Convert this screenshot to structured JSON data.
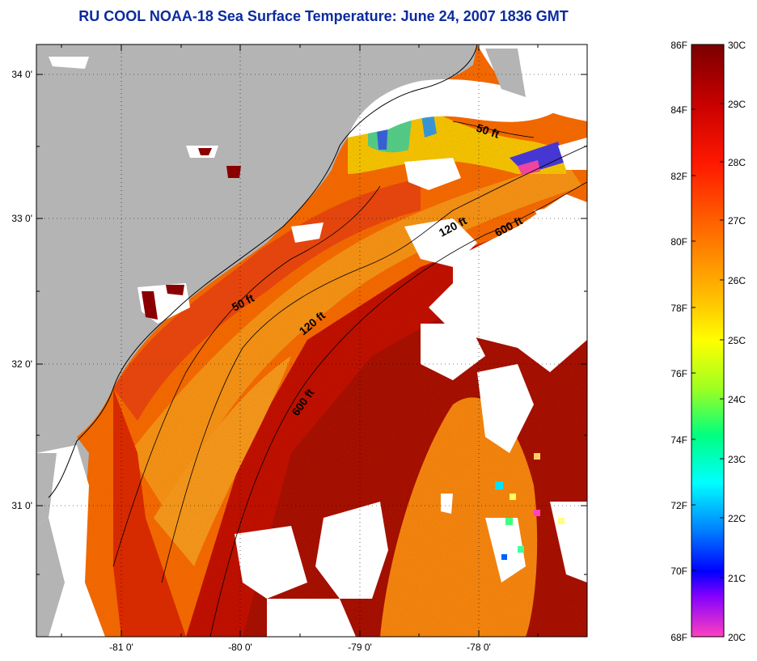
{
  "title": "RU COOL  NOAA-18  Sea Surface Temperature:  June 24, 2007 1836 GMT",
  "map": {
    "lat_labels": [
      "34 0'",
      "33 0'",
      "32 0'",
      "31 0'"
    ],
    "lon_labels": [
      "-81 0'",
      "-80 0'",
      "-79 0'",
      "-78 0'"
    ],
    "contours": [
      "50 ft",
      "120 ft",
      "600 ft",
      "50 ft",
      "120 ft",
      "600 ft"
    ]
  },
  "colorbar": {
    "f_labels": [
      "86F",
      "84F",
      "82F",
      "80F",
      "78F",
      "76F",
      "74F",
      "72F",
      "70F",
      "68F"
    ],
    "c_labels": [
      "30C",
      "29C",
      "28C",
      "27C",
      "26C",
      "25C",
      "24C",
      "23C",
      "22C",
      "21C",
      "20C"
    ],
    "colors": {
      "top": "#800000",
      "red": "#ff0000",
      "orange": "#ff8000",
      "yellow": "#ffff00",
      "green": "#80ff00",
      "cyan": "#00ffff",
      "blue": "#0000ff",
      "violet": "#8000ff",
      "magenta": "#ff40c0",
      "land": "#b4b4b4",
      "cloud": "#ffffff"
    }
  }
}
